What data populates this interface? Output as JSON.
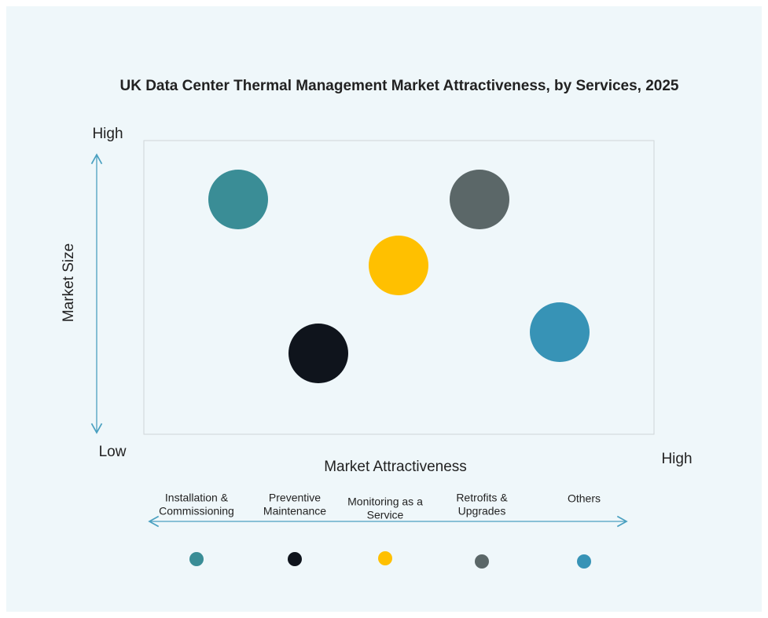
{
  "title": "UK Data Center Thermal Management Market Attractiveness,  by Services, 2025",
  "y_axis": {
    "label": "Market Size",
    "high": "High",
    "low": "Low"
  },
  "x_axis": {
    "label": "Market Attractiveness",
    "high": "High"
  },
  "items": [
    {
      "lines": [
        "Installation &",
        "Commissioning"
      ],
      "color": "#3a8d96"
    },
    {
      "lines": [
        "Preventive",
        "Maintenance"
      ],
      "color": "#0f141c"
    },
    {
      "lines": [
        "Monitoring as a",
        "Service"
      ],
      "color": "#ffc000"
    },
    {
      "lines": [
        "Retrofits &",
        "Upgrades"
      ],
      "color": "#5b6768"
    },
    {
      "lines": [
        "Others"
      ],
      "color": "#3793b6"
    }
  ]
}
